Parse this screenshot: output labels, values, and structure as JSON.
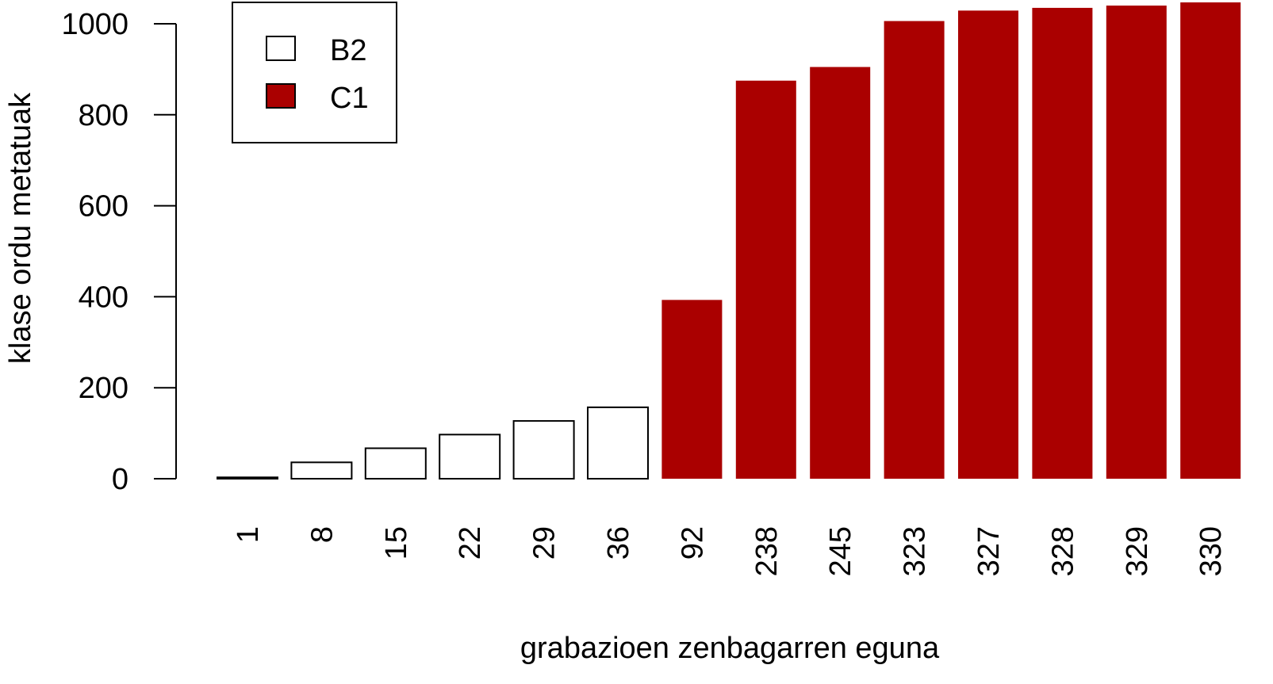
{
  "chart_data": {
    "type": "bar",
    "title": "",
    "xlabel": "grabazioen zenbagarren eguna",
    "ylabel": "klase ordu metatuak",
    "ylim": [
      0,
      1050
    ],
    "yticks": [
      "0",
      "200",
      "400",
      "600",
      "800",
      "1000"
    ],
    "grid": false,
    "legend_position": "top-left",
    "categories": [
      "1",
      "8",
      "15",
      "22",
      "29",
      "36",
      "92",
      "238",
      "245",
      "323",
      "327",
      "328",
      "329",
      "330"
    ],
    "values": [
      3,
      36,
      67,
      97,
      127,
      157,
      393,
      875,
      905,
      1006,
      1029,
      1035,
      1040,
      1047
    ],
    "levels": [
      "B2",
      "B2",
      "B2",
      "B2",
      "B2",
      "B2",
      "C1",
      "C1",
      "C1",
      "C1",
      "C1",
      "C1",
      "C1",
      "C1"
    ],
    "legend": [
      {
        "name": "B2",
        "color": "#ffffff"
      },
      {
        "name": "C1",
        "color": "#aa0000"
      }
    ]
  }
}
